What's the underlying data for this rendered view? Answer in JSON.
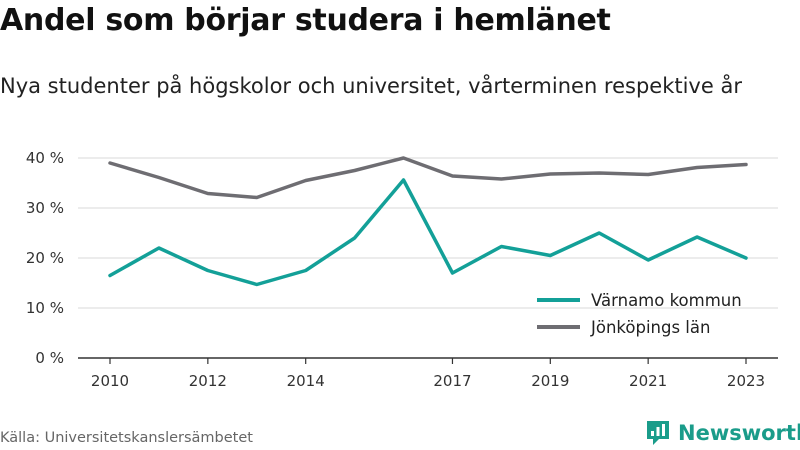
{
  "title": "Andel som börjar studera i hemlänet",
  "subtitle": "Nya studenter på högskolor och universitet, vårterminen respektive år",
  "source": "Källa: Universitetskanslersämbetet",
  "brand": {
    "name": "Newsworthy",
    "icon": "newsworthy-logo-icon",
    "color": "#1a9c8a"
  },
  "chart_data": {
    "type": "line",
    "x": [
      2010,
      2011,
      2012,
      2013,
      2014,
      2015,
      2016,
      2017,
      2018,
      2019,
      2020,
      2021,
      2022,
      2023
    ],
    "x_tick_labels": [
      "2010",
      "2012",
      "2014",
      "2017",
      "2019",
      "2021",
      "2023"
    ],
    "x_tick_values": [
      2010,
      2012,
      2014,
      2017,
      2019,
      2021,
      2023
    ],
    "y_tick_labels": [
      "0 %",
      "10 %",
      "20 %",
      "30 %",
      "40 %"
    ],
    "y_tick_values": [
      0,
      10,
      20,
      30,
      40
    ],
    "ylim": [
      0,
      40
    ],
    "xlim": [
      2010,
      2023
    ],
    "grid": true,
    "legend_position": "bottom-right",
    "series": [
      {
        "name": "Värnamo kommun",
        "color": "#13a098",
        "values": [
          16.5,
          22,
          17.5,
          14.7,
          17.5,
          24,
          35.6,
          17,
          22.3,
          20.5,
          25,
          19.6,
          24.2,
          20
        ]
      },
      {
        "name": "Jönköpings län",
        "color": "#6e6d72",
        "values": [
          39,
          36.1,
          32.9,
          32.1,
          35.5,
          37.5,
          40,
          36.4,
          35.8,
          36.8,
          37,
          36.7,
          38.1,
          38.7
        ]
      }
    ]
  }
}
